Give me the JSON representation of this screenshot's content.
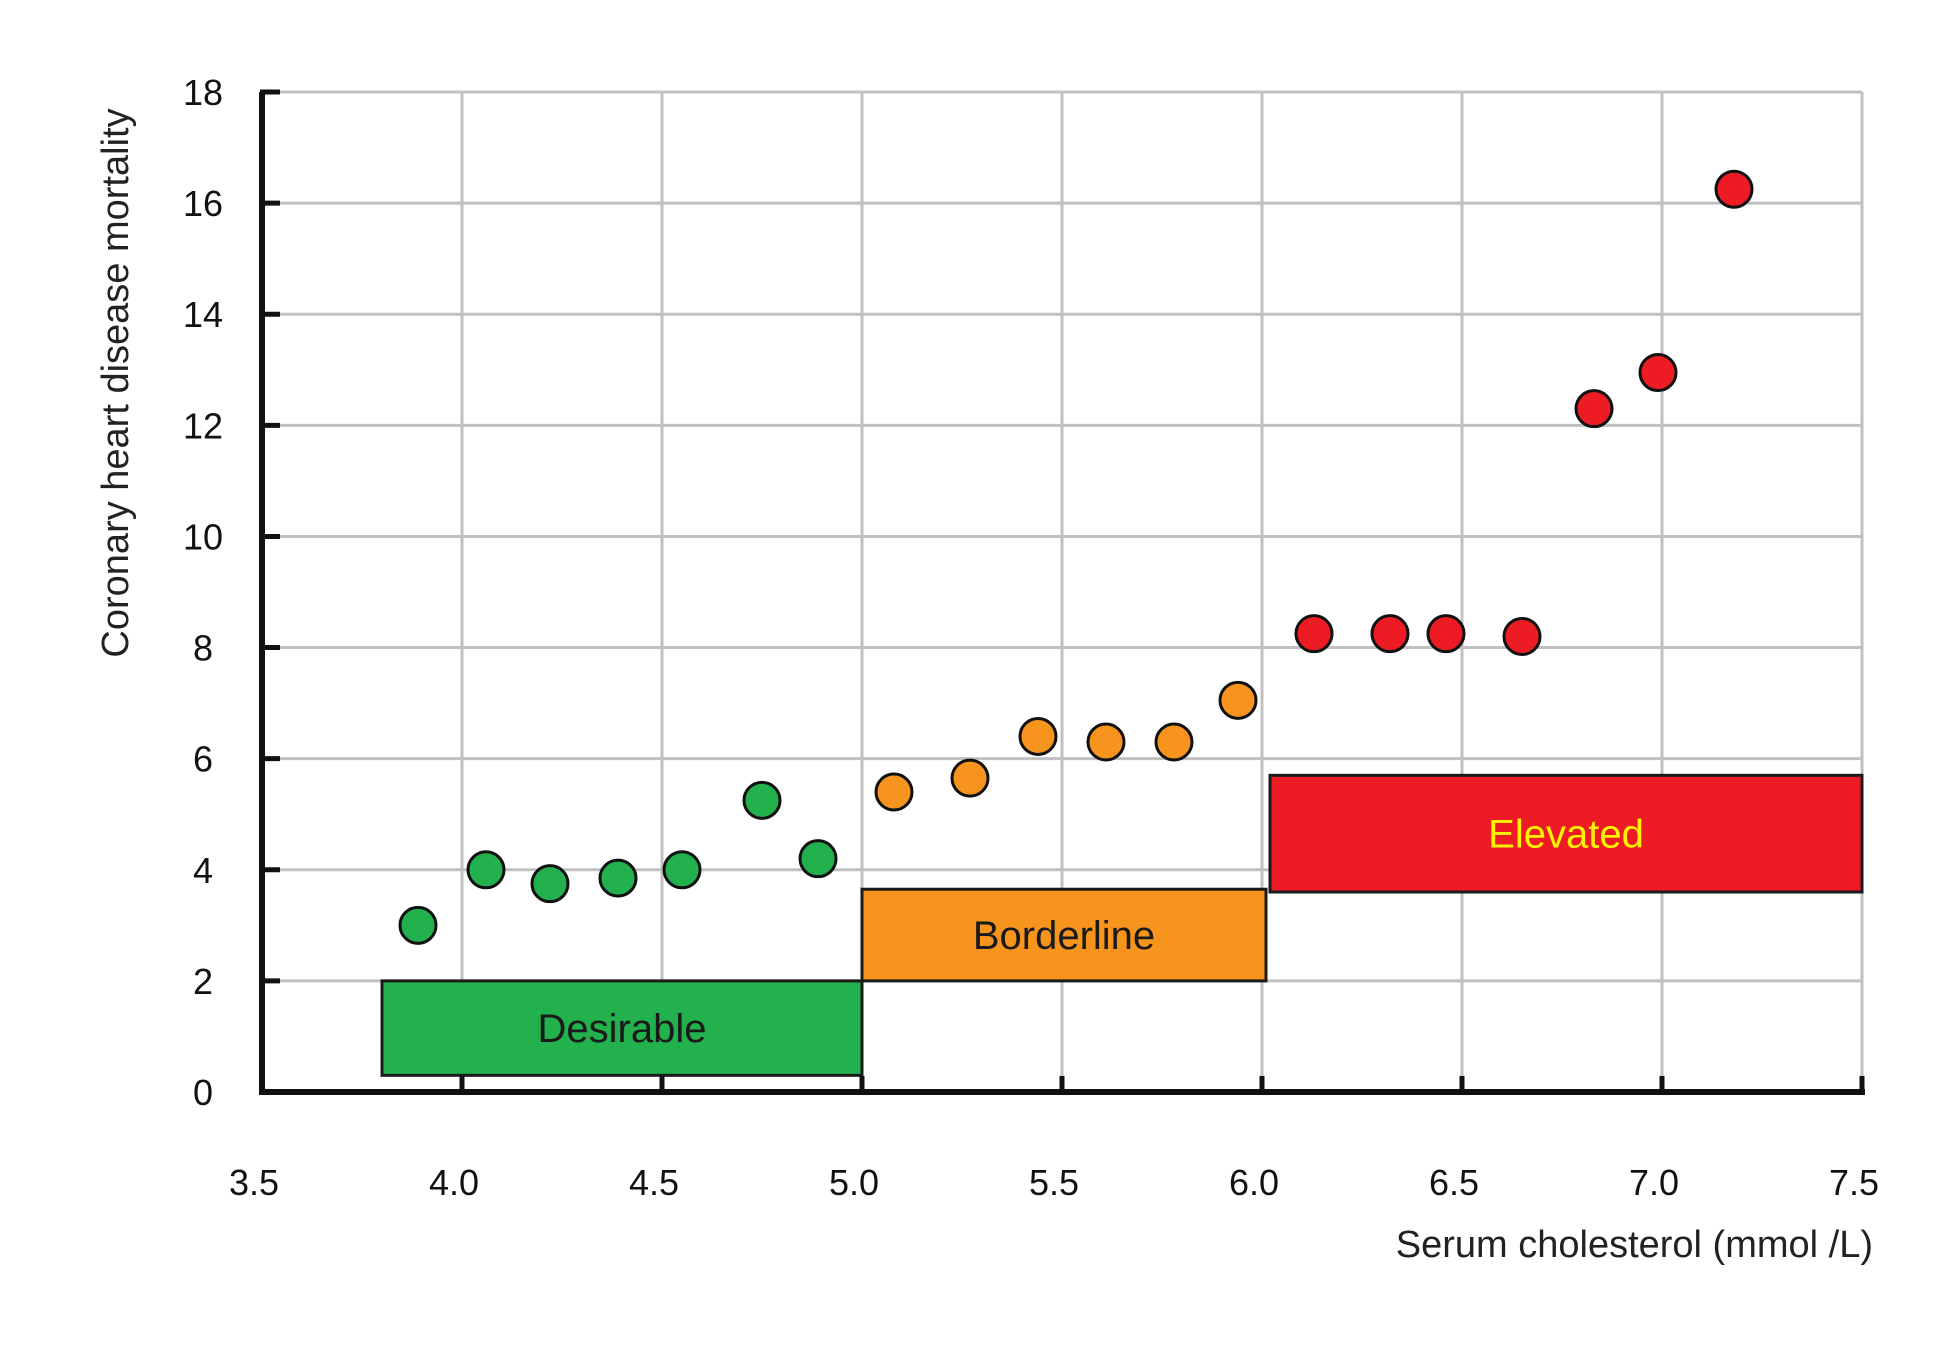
{
  "chart_data": {
    "type": "scatter",
    "xlabel": "Serum cholesterol (mmol /L)",
    "ylabel": "Coronary heart disease mortality",
    "xlim": [
      3.5,
      7.5
    ],
    "ylim": [
      0,
      18
    ],
    "x_ticks": [
      "3.5",
      "4.0",
      "4.5",
      "5.0",
      "5.5",
      "6.0",
      "6.5",
      "7.0",
      "7.5"
    ],
    "y_ticks": [
      "0",
      "2",
      "4",
      "6",
      "8",
      "10",
      "12",
      "14",
      "16",
      "18"
    ],
    "grid": true,
    "series": [
      {
        "color": "#22b14c",
        "points": [
          {
            "x": 3.89,
            "y": 3.0
          },
          {
            "x": 4.06,
            "y": 4.0
          },
          {
            "x": 4.22,
            "y": 3.75
          },
          {
            "x": 4.39,
            "y": 3.85
          },
          {
            "x": 4.55,
            "y": 4.0
          },
          {
            "x": 4.75,
            "y": 5.25
          },
          {
            "x": 4.89,
            "y": 4.2
          }
        ]
      },
      {
        "color": "#f7941d",
        "points": [
          {
            "x": 5.08,
            "y": 5.4
          },
          {
            "x": 5.27,
            "y": 5.65
          },
          {
            "x": 5.44,
            "y": 6.4
          },
          {
            "x": 5.61,
            "y": 6.3
          },
          {
            "x": 5.78,
            "y": 6.3
          },
          {
            "x": 5.94,
            "y": 7.05
          }
        ]
      },
      {
        "color": "#ed1c24",
        "points": [
          {
            "x": 6.13,
            "y": 8.25
          },
          {
            "x": 6.32,
            "y": 8.25
          },
          {
            "x": 6.46,
            "y": 8.25
          },
          {
            "x": 6.65,
            "y": 8.2
          },
          {
            "x": 6.83,
            "y": 12.3
          },
          {
            "x": 6.99,
            "y": 12.95
          },
          {
            "x": 7.18,
            "y": 16.25
          }
        ]
      }
    ],
    "bands": [
      {
        "label": "Desirable",
        "x0": 3.8,
        "x1": 5.0,
        "y0": 0.3,
        "y1": 2.0,
        "fill": "#22b14c",
        "text_color": "#1a1a1a"
      },
      {
        "label": "Borderline",
        "x0": 5.0,
        "x1": 6.01,
        "y0": 2.0,
        "y1": 3.65,
        "fill": "#f7941d",
        "text_color": "#1a1a1a"
      },
      {
        "label": "Elevated",
        "x0": 6.02,
        "x1": 7.5,
        "y0": 3.6,
        "y1": 5.7,
        "fill": "#ed1c24",
        "text_color": "#fff200"
      }
    ]
  }
}
